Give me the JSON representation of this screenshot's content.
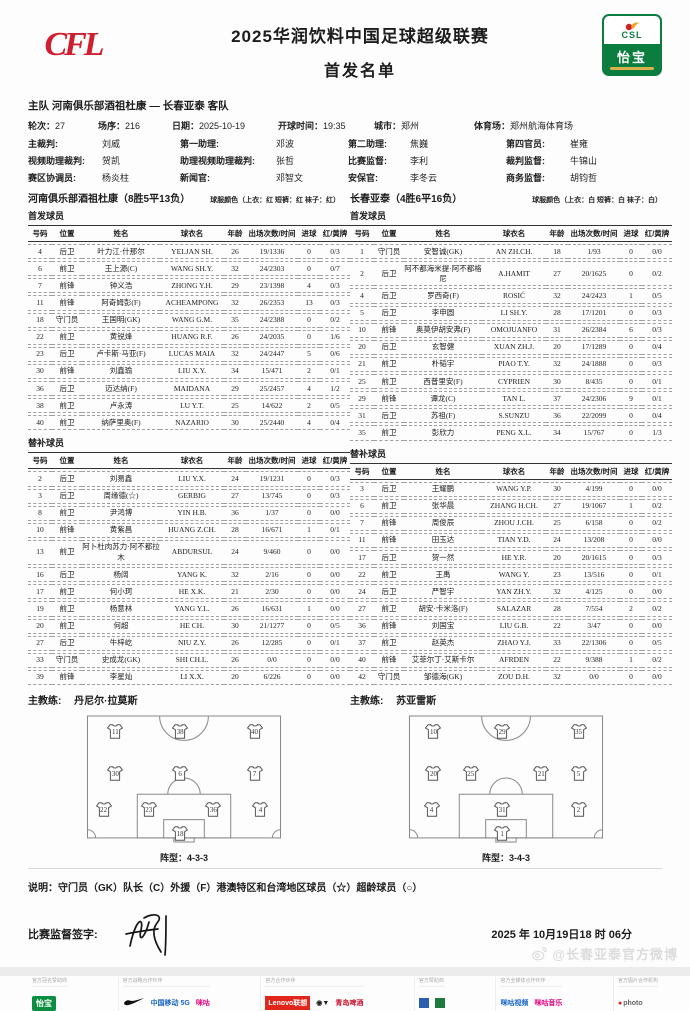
{
  "header": {
    "cfl_logo_text": "CFL",
    "title_line1": "2025华润饮料中国足球超级联赛",
    "title_line2": "首发名单",
    "badge": {
      "csl": "CSL",
      "brand": "怡宝"
    }
  },
  "match": {
    "teams_line": "主队 河南俱乐部酒祖杜康 — 长春亚泰 客队",
    "info": [
      {
        "label": "轮次：",
        "value": "27"
      },
      {
        "label": "场序：",
        "value": "216"
      },
      {
        "label": "日期：",
        "value": "2025-10-19"
      },
      {
        "label": "开球时间：",
        "value": "19:35"
      },
      {
        "label": "城市：",
        "value": "郑州"
      },
      {
        "label": "体育场：",
        "value": "郑州航海体育场"
      }
    ],
    "officials": [
      [
        {
          "label": "主裁判:",
          "value": "刘威"
        },
        {
          "label": "第一助理:",
          "value": "邓波"
        },
        {
          "label": "第二助理:",
          "value": "焦巍"
        },
        {
          "label": "第四官员:",
          "value": "崔雍"
        }
      ],
      [
        {
          "label": "视频助理裁判:",
          "value": "贺凯"
        },
        {
          "label": "助理视频助理裁判:",
          "value": "张哲"
        },
        {
          "label": "比赛监督:",
          "value": "李利"
        },
        {
          "label": "裁判监督:",
          "value": "牛锦山"
        }
      ],
      [
        {
          "label": "赛区协调员:",
          "value": "杨炎柱"
        },
        {
          "label": "新闻官:",
          "value": "邓智文"
        },
        {
          "label": "安保官:",
          "value": "李冬云"
        },
        {
          "label": "商务监督:",
          "value": "胡钧哲"
        }
      ]
    ]
  },
  "columns": [
    "号码",
    "位置",
    "姓名",
    "球衣名",
    "年龄",
    "出场次数/时间",
    "进球",
    "红/黄牌"
  ],
  "teams": [
    {
      "title": "河南俱乐部酒祖杜康（8胜5平13负）",
      "kit_note": "球服颜色（上衣：红 短裤：红 袜子：红）",
      "starters_label": "首发球员",
      "subs_label": "替补球员",
      "starters": [
        [
          "4",
          "后卫",
          "叶力江·什那尔",
          "YELJAN SH.",
          "26",
          "19/1336",
          "0",
          "0/3"
        ],
        [
          "6",
          "前卫",
          "王上源(C)",
          "WANG SH.Y.",
          "32",
          "24/2303",
          "0",
          "0/7"
        ],
        [
          "7",
          "前锋",
          "钟义浩",
          "ZHONG Y.H.",
          "29",
          "23/1398",
          "4",
          "0/3"
        ],
        [
          "11",
          "前锋",
          "阿奇姆彭(F)",
          "ACHEAMPONG",
          "32",
          "26/2353",
          "13",
          "0/3"
        ],
        [
          "18",
          "守门员",
          "王国明(GK)",
          "WANG G.M.",
          "35",
          "24/2388",
          "0",
          "0/2"
        ],
        [
          "22",
          "前卫",
          "黄锐烽",
          "HUANG R.F.",
          "26",
          "24/2035",
          "0",
          "1/6"
        ],
        [
          "23",
          "后卫",
          "卢卡斯·马亚(F)",
          "LUCAS MAIA",
          "32",
          "24/2447",
          "5",
          "0/6"
        ],
        [
          "30",
          "前锋",
          "刘鑫瑜",
          "LIU X.Y.",
          "34",
          "15/471",
          "2",
          "0/1"
        ],
        [
          "36",
          "后卫",
          "迈达纳(F)",
          "MAIDANA",
          "29",
          "25/2457",
          "4",
          "1/2"
        ],
        [
          "38",
          "前卫",
          "卢永涛",
          "LU Y.T.",
          "25",
          "14/622",
          "2",
          "0/5"
        ],
        [
          "40",
          "前卫",
          "纳萨里奥(F)",
          "NAZARIO",
          "30",
          "25/2440",
          "4",
          "0/4"
        ]
      ],
      "subs": [
        [
          "2",
          "后卫",
          "刘易鑫",
          "LIU Y.X.",
          "24",
          "19/1231",
          "0",
          "0/3"
        ],
        [
          "3",
          "后卫",
          "周缘德(☆)",
          "GERBIG",
          "27",
          "13/745",
          "0",
          "0/3"
        ],
        [
          "8",
          "前卫",
          "尹鸿博",
          "YIN H.B.",
          "36",
          "1/37",
          "0",
          "0/0"
        ],
        [
          "10",
          "前锋",
          "黄紫昌",
          "HUANG Z.CH.",
          "28",
          "16/671",
          "1",
          "0/1"
        ],
        [
          "13",
          "前卫",
          "阿卜杜肉苏力·阿不都拉木",
          "ABDURSUL",
          "24",
          "9/460",
          "0",
          "0/0"
        ],
        [
          "16",
          "后卫",
          "杨阔",
          "YANG K.",
          "32",
          "2/16",
          "0",
          "0/0"
        ],
        [
          "17",
          "前卫",
          "何小珂",
          "HE X.K.",
          "21",
          "2/30",
          "0",
          "0/0"
        ],
        [
          "19",
          "前卫",
          "杨意林",
          "YANG Y.L.",
          "26",
          "16/631",
          "1",
          "0/0"
        ],
        [
          "20",
          "前卫",
          "何超",
          "HE CH.",
          "30",
          "21/1277",
          "0",
          "0/5"
        ],
        [
          "27",
          "后卫",
          "牛梓屹",
          "NIU Z.Y.",
          "26",
          "12/285",
          "0",
          "0/1"
        ],
        [
          "33",
          "守门员",
          "史成龙(GK)",
          "SHI CH.L.",
          "26",
          "0/0",
          "0",
          "0/0"
        ],
        [
          "39",
          "前锋",
          "李星灿",
          "LI X.X.",
          "20",
          "6/226",
          "0",
          "0/0"
        ]
      ],
      "coach_label": "主教练:",
      "coach": "丹尼尔·拉莫斯",
      "formation_label": "阵型：4-3-3",
      "formation": [
        {
          "y": 13,
          "players": [
            {
              "n": "11",
              "x": 15
            },
            {
              "n": "38",
              "x": 48
            },
            {
              "n": "40",
              "x": 86
            }
          ]
        },
        {
          "y": 46,
          "players": [
            {
              "n": "30",
              "x": 15
            },
            {
              "n": "6",
              "x": 48
            },
            {
              "n": "7",
              "x": 86
            }
          ]
        },
        {
          "y": 74,
          "players": [
            {
              "n": "22",
              "x": 9
            },
            {
              "n": "23",
              "x": 32
            },
            {
              "n": "36",
              "x": 65
            },
            {
              "n": "4",
              "x": 89
            }
          ]
        },
        {
          "y": 93,
          "players": [
            {
              "n": "18",
              "x": 48
            }
          ]
        }
      ]
    },
    {
      "title": "长春亚泰（4胜6平16负）",
      "kit_note": "球服颜色（上衣：白 短裤：白 袜子：白）",
      "starters_label": "首发球员",
      "subs_label": "替补球员",
      "starters": [
        [
          "1",
          "守门员",
          "安智诚(GK)",
          "AN ZH.CH.",
          "18",
          "1/93",
          "0",
          "0/0"
        ],
        [
          "2",
          "后卫",
          "阿不都海米提·阿不都格尼",
          "A.HAMIT",
          "27",
          "20/1625",
          "0",
          "0/2"
        ],
        [
          "4",
          "后卫",
          "罗西奇(F)",
          "ROSIĆ",
          "32",
          "24/2423",
          "1",
          "0/5"
        ],
        [
          "5",
          "后卫",
          "李申圆",
          "LI SH.Y.",
          "28",
          "17/1201",
          "0",
          "0/3"
        ],
        [
          "10",
          "前锋",
          "奥莫伊胡安弗(F)",
          "OMOJUANFO",
          "31",
          "26/2384",
          "6",
          "0/3"
        ],
        [
          "20",
          "后卫",
          "玄智健",
          "XUAN ZH.J.",
          "20",
          "17/1289",
          "0",
          "0/4"
        ],
        [
          "21",
          "前卫",
          "朴韬宇",
          "PIAO T.Y.",
          "32",
          "24/1888",
          "0",
          "0/3"
        ],
        [
          "25",
          "前卫",
          "西普里安(F)",
          "CYPRIEN",
          "30",
          "8/435",
          "0",
          "0/1"
        ],
        [
          "29",
          "前锋",
          "谭龙(C)",
          "TAN L.",
          "37",
          "24/2306",
          "9",
          "0/1"
        ],
        [
          "31",
          "后卫",
          "苏祖(F)",
          "S.SUNZU",
          "36",
          "22/2099",
          "0",
          "0/4"
        ],
        [
          "35",
          "前卫",
          "彭欣力",
          "PENG X.L.",
          "34",
          "15/767",
          "0",
          "1/3"
        ]
      ],
      "subs": [
        [
          "3",
          "后卫",
          "王耀鹏",
          "WANG Y.P.",
          "30",
          "4/199",
          "0",
          "0/0"
        ],
        [
          "6",
          "前卫",
          "张华晨",
          "ZHANG H.CH.",
          "27",
          "19/1067",
          "1",
          "0/2"
        ],
        [
          "7",
          "前锋",
          "周俊辰",
          "ZHOU J.CH.",
          "25",
          "6/158",
          "0",
          "0/2"
        ],
        [
          "11",
          "前锋",
          "田玉达",
          "TIAN Y.D.",
          "24",
          "13/208",
          "0",
          "0/0"
        ],
        [
          "17",
          "后卫",
          "贺一然",
          "HE Y.R.",
          "20",
          "20/1615",
          "0",
          "0/3"
        ],
        [
          "22",
          "前卫",
          "王禹",
          "WANG Y.",
          "23",
          "13/516",
          "0",
          "0/1"
        ],
        [
          "24",
          "后卫",
          "严智宇",
          "YAN ZH.Y.",
          "32",
          "4/125",
          "0",
          "0/0"
        ],
        [
          "27",
          "前卫",
          "胡安·卡米洛(F)",
          "SALAZAR",
          "28",
          "7/554",
          "2",
          "0/2"
        ],
        [
          "36",
          "前锋",
          "刘国宝",
          "LIU G.B.",
          "22",
          "3/47",
          "0",
          "0/0"
        ],
        [
          "37",
          "前卫",
          "赵英杰",
          "ZHAO Y.J.",
          "33",
          "22/1306",
          "0",
          "0/5"
        ],
        [
          "40",
          "前锋",
          "艾菲尔丁·艾斯卡尔",
          "AFRDEN",
          "22",
          "9/388",
          "1",
          "0/2"
        ],
        [
          "42",
          "守门员",
          "邹德海(GK)",
          "ZOU D.H.",
          "32",
          "0/0",
          "0",
          "0/0"
        ]
      ],
      "coach_label": "主教练:",
      "coach": "苏亚雷斯",
      "formation_label": "阵型：3-4-3",
      "formation": [
        {
          "y": 13,
          "players": [
            {
              "n": "10",
              "x": 13
            },
            {
              "n": "29",
              "x": 48
            },
            {
              "n": "35",
              "x": 87
            }
          ]
        },
        {
          "y": 46,
          "players": [
            {
              "n": "20",
              "x": 13
            },
            {
              "n": "25",
              "x": 32
            },
            {
              "n": "21",
              "x": 68
            },
            {
              "n": "5",
              "x": 87
            }
          ]
        },
        {
          "y": 74,
          "players": [
            {
              "n": "4",
              "x": 12
            },
            {
              "n": "31",
              "x": 48
            },
            {
              "n": "2",
              "x": 87
            }
          ]
        },
        {
          "y": 93,
          "players": [
            {
              "n": "1",
              "x": 48
            }
          ]
        }
      ]
    }
  ],
  "footer": {
    "legend": "说明：守门员（GK）队长（C）外援（F）港澳特区和台湾地区球员（☆）超龄球员（○）",
    "sign_label": "比赛监督签字:",
    "datetime": "2025 年 10月19日18 时 06分",
    "sponsor_groups": [
      {
        "label": "官方冠名赞助商",
        "logos": [
          {
            "name": "yibao-logo",
            "text": "怡宝",
            "kind": "green"
          }
        ]
      },
      {
        "label": "官方战略合作伙伴",
        "logos": [
          {
            "name": "nike-logo",
            "text": "",
            "kind": "nike"
          },
          {
            "name": "china-mobile-logo",
            "text": "中国移动 5G",
            "kind": "blue"
          },
          {
            "name": "migu-logo",
            "text": "咪咕",
            "kind": "pink"
          }
        ]
      },
      {
        "label": "官方合作伙伴",
        "logos": [
          {
            "name": "lenovo-logo",
            "text": "Lenovo联想",
            "kind": "redbox"
          },
          {
            "name": "sponsor-logo",
            "text": "◉▼",
            "kind": "dark"
          },
          {
            "name": "tsingtao-beer-logo",
            "text": "青岛啤酒",
            "kind": "red"
          }
        ]
      },
      {
        "label": "官方赞助商",
        "logos": [
          {
            "name": "sponsor-logo-square-blue",
            "text": "",
            "kind": "blue-sq"
          },
          {
            "name": "sponsor-logo-square-green",
            "text": "",
            "kind": "green-sq"
          }
        ]
      },
      {
        "label": "官方全媒体合作伙伴",
        "logos": [
          {
            "name": "migu-video-logo",
            "text": "咪咕视频",
            "kind": "blue"
          },
          {
            "name": "migu-music-logo",
            "text": "咪咕音乐",
            "kind": "pink"
          }
        ]
      },
      {
        "label": "官方图片合作机构",
        "logos": [
          {
            "name": "photo-logo",
            "text": "photo",
            "kind": "photo"
          }
        ]
      }
    ],
    "watermark": "@长春亚泰官方微博"
  }
}
